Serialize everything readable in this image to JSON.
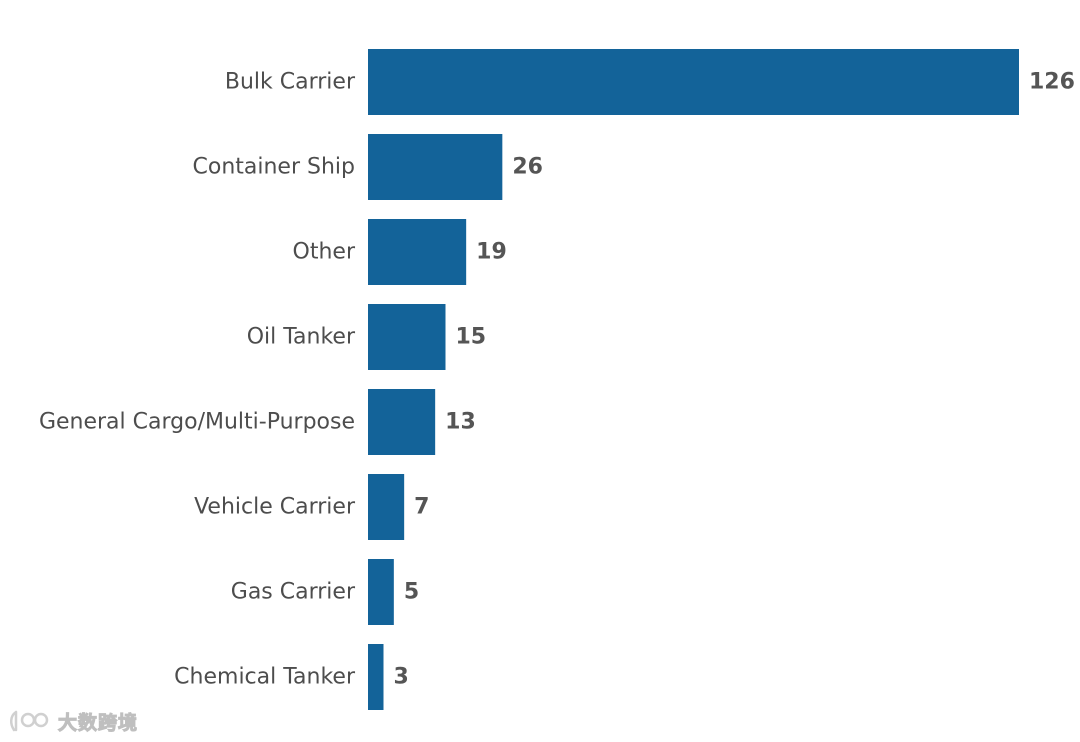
{
  "chart_data": {
    "type": "bar",
    "orientation": "horizontal",
    "categories": [
      "Bulk Carrier",
      "Container Ship",
      "Other",
      "Oil Tanker",
      "General Cargo/Multi-Purpose",
      "Vehicle Carrier",
      "Gas Carrier",
      "Chemical Tanker"
    ],
    "values": [
      126,
      26,
      19,
      15,
      13,
      7,
      5,
      3
    ],
    "data_labels": [
      "126",
      "26",
      "19",
      "15",
      "13",
      "7",
      "5",
      "3"
    ],
    "title": "",
    "xlabel": "",
    "ylabel": "",
    "xlim": [
      0,
      126
    ],
    "grid": false,
    "legend": "none",
    "bar_color": "#136399"
  },
  "watermark": {
    "text": "大数跨境"
  }
}
